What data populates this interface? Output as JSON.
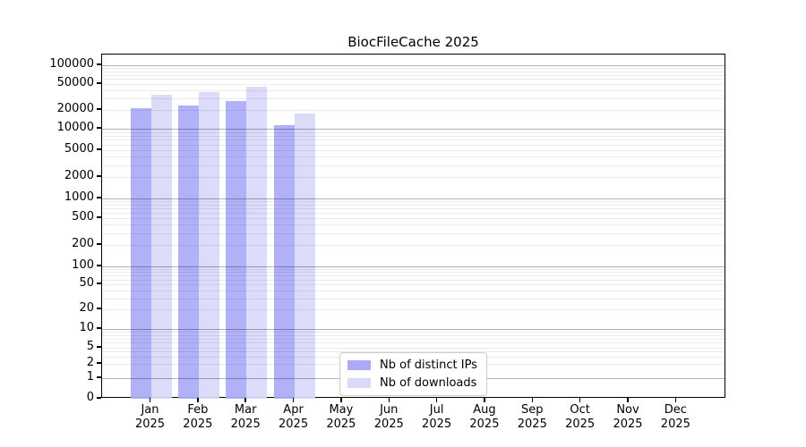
{
  "chart_data": {
    "type": "bar",
    "title": "BiocFileCache 2025",
    "categories": [
      "Jan",
      "Feb",
      "Mar",
      "Apr",
      "May",
      "Jun",
      "Jul",
      "Aug",
      "Sep",
      "Oct",
      "Nov",
      "Dec"
    ],
    "category_year": "2025",
    "series": [
      {
        "name": "Nb of distinct IPs",
        "color": "#aaaaf7",
        "values": [
          21100,
          23200,
          27200,
          11500,
          null,
          null,
          null,
          null,
          null,
          null,
          null,
          null
        ]
      },
      {
        "name": "Nb of downloads",
        "color": "#d9d9fa",
        "values": [
          34200,
          37800,
          45500,
          17400,
          null,
          null,
          null,
          null,
          null,
          null,
          null,
          null
        ]
      }
    ],
    "yticks": [
      0,
      1,
      2,
      5,
      10,
      20,
      50,
      100,
      200,
      500,
      1000,
      2000,
      5000,
      10000,
      20000,
      50000,
      100000
    ],
    "yscale": "log-like with 0 baseline",
    "ylim": [
      0,
      100000
    ],
    "grid": "horizontal major and minor gridlines",
    "legend_position": "inside bottom-center"
  },
  "colors": {
    "background": "#ffffff",
    "bar_distinct_ips": "#aaaaf7",
    "bar_downloads": "#d9d9fa",
    "major_gridline": "#b3b3b3",
    "minor_gridline": "#ebebeb",
    "axis": "#000000",
    "legend_border": "#cccccc",
    "text": "#000000"
  }
}
